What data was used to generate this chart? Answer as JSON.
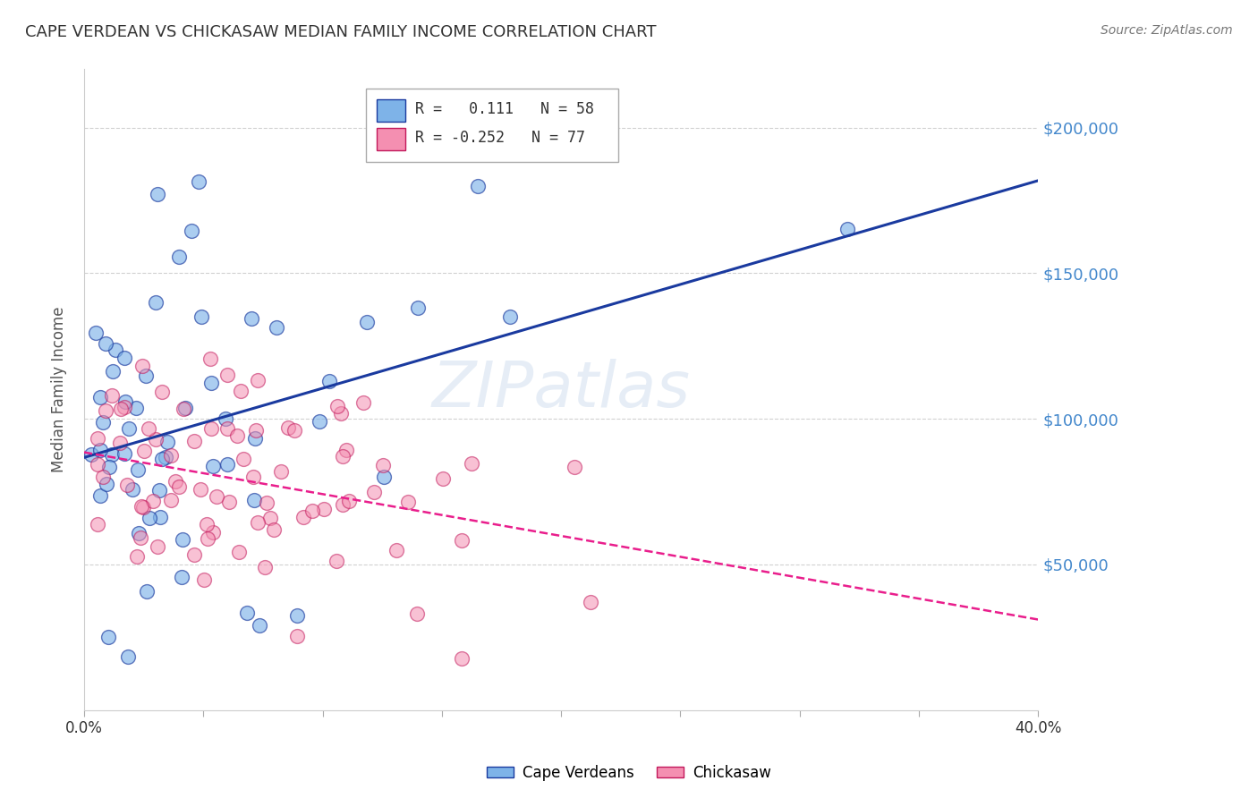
{
  "title": "CAPE VERDEAN VS CHICKASAW MEDIAN FAMILY INCOME CORRELATION CHART",
  "source": "Source: ZipAtlas.com",
  "ylabel": "Median Family Income",
  "watermark": "ZIPatlas",
  "xlim": [
    0.0,
    0.4
  ],
  "ylim": [
    0,
    220000
  ],
  "yticks": [
    50000,
    100000,
    150000,
    200000
  ],
  "ytick_labels": [
    "$50,000",
    "$100,000",
    "$150,000",
    "$200,000"
  ],
  "xticks": [
    0.0,
    0.05,
    0.1,
    0.15,
    0.2,
    0.25,
    0.3,
    0.35,
    0.4
  ],
  "xtick_labels": [
    "0.0%",
    "",
    "",
    "",
    "",
    "",
    "",
    "",
    "40.0%"
  ],
  "blue_color": "#7EB3E8",
  "pink_color": "#F48FB1",
  "blue_line_color": "#1A3A9F",
  "pink_line_color": "#E91E8C",
  "pink_edge_color": "#C2185B",
  "grid_color": "#CCCCCC",
  "right_label_color": "#4488CC",
  "background_color": "#FFFFFF",
  "r_blue": 0.111,
  "n_blue": 58,
  "r_pink": -0.252,
  "n_pink": 77
}
